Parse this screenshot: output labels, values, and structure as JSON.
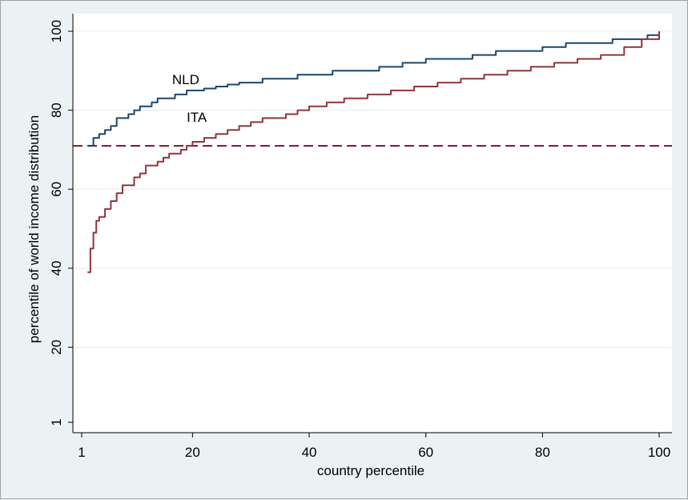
{
  "chart_data": {
    "type": "line",
    "title": "",
    "xlabel": "country percentile",
    "ylabel": "percentile of world income distribution",
    "xlim": [
      1,
      100
    ],
    "ylim": [
      1,
      100
    ],
    "xticks": [
      1,
      20,
      40,
      60,
      80,
      100
    ],
    "yticks": [
      1,
      20,
      40,
      60,
      80,
      100
    ],
    "grid": "horizontal",
    "plot_background": "#ffffff",
    "page_background": "#eaf2f3",
    "reference_line": {
      "y": 71,
      "style": "dashed",
      "color": "#8b1a2e"
    },
    "series": [
      {
        "name": "NLD",
        "color": "#1a476f",
        "x": [
          2,
          3,
          4,
          5,
          6,
          7,
          8,
          9,
          10,
          11,
          12,
          13,
          14,
          15,
          16,
          17,
          18,
          19,
          20,
          22,
          24,
          26,
          28,
          30,
          32,
          34,
          36,
          38,
          40,
          44,
          48,
          52,
          56,
          60,
          64,
          68,
          72,
          76,
          80,
          84,
          88,
          92,
          95,
          98,
          100
        ],
        "y": [
          71,
          73,
          74,
          75,
          76,
          78,
          78,
          79,
          80,
          81,
          81,
          82,
          83,
          83,
          83,
          84,
          84,
          85,
          85,
          85.5,
          86,
          86.5,
          87,
          87,
          88,
          88,
          88,
          89,
          89,
          90,
          90,
          91,
          92,
          93,
          93,
          94,
          95,
          95,
          96,
          97,
          97,
          98,
          98,
          99,
          100
        ]
      },
      {
        "name": "ITA",
        "color": "#90353b",
        "x": [
          2,
          2.5,
          3,
          3.5,
          4,
          5,
          6,
          7,
          8,
          9,
          10,
          11,
          12,
          13,
          14,
          15,
          16,
          17,
          18,
          19,
          20,
          21,
          22,
          24,
          26,
          28,
          30,
          32,
          34,
          36,
          38,
          40,
          43,
          46,
          50,
          54,
          58,
          62,
          66,
          70,
          74,
          78,
          82,
          86,
          90,
          94,
          97,
          100
        ],
        "y": [
          39,
          45,
          49,
          52,
          53,
          55,
          57,
          59,
          61,
          61,
          63,
          64,
          66,
          66,
          67,
          68,
          69,
          69,
          70,
          71,
          72,
          72,
          73,
          74,
          75,
          76,
          77,
          78,
          78,
          79,
          80,
          81,
          82,
          83,
          84,
          85,
          86,
          87,
          88,
          89,
          90,
          91,
          92,
          93,
          94,
          96,
          98,
          100
        ]
      }
    ]
  }
}
